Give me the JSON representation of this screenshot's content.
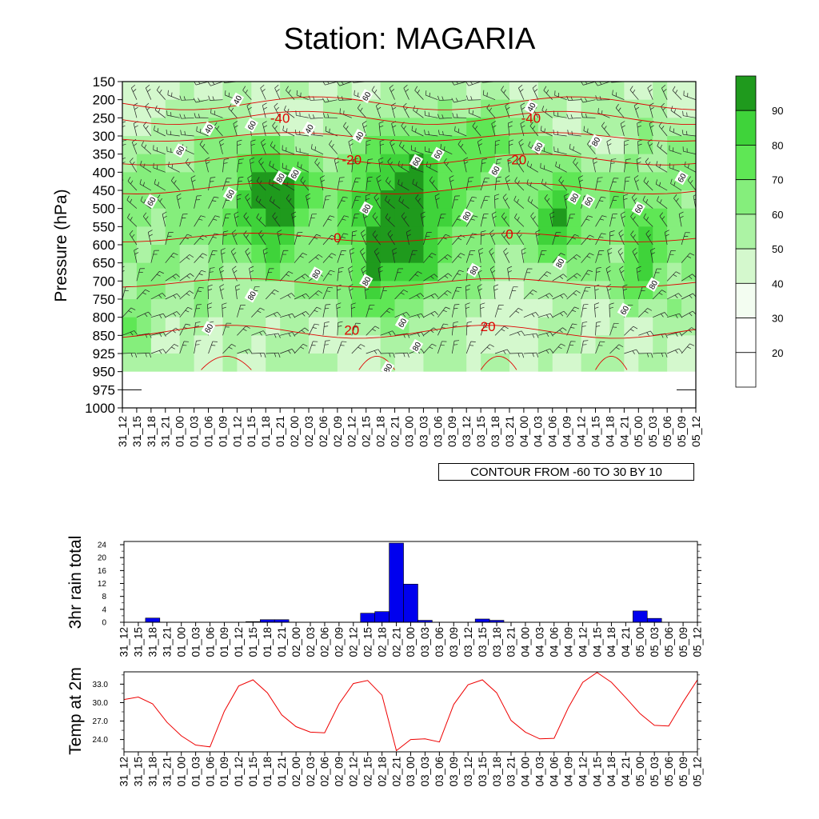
{
  "title": "Station: MAGARIA",
  "contour_note": "CONTOUR FROM -60 TO 30 BY 10",
  "colors": {
    "rh_levels": [
      "#ffffff",
      "#f3fdf1",
      "#d4f8cd",
      "#acf3a4",
      "#85ee7c",
      "#5fe755",
      "#3fd33a",
      "#1f9a1d"
    ],
    "temp_contour": "#e00000",
    "rain_bar": "#0000ee",
    "temp_line": "#ee0000"
  },
  "time_labels": [
    "31_12",
    "31_15",
    "31_18",
    "31_21",
    "01_00",
    "01_03",
    "01_06",
    "01_09",
    "01_12",
    "01_15",
    "01_18",
    "01_21",
    "02_00",
    "02_03",
    "02_06",
    "02_09",
    "02_12",
    "02_15",
    "02_18",
    "02_21",
    "03_00",
    "03_03",
    "03_06",
    "03_09",
    "03_12",
    "03_15",
    "03_18",
    "03_21",
    "04_00",
    "04_03",
    "04_06",
    "04_09",
    "04_12",
    "04_15",
    "04_18",
    "04_21",
    "05_00",
    "05_03",
    "05_06",
    "05_09",
    "05_12"
  ],
  "chart_data": [
    {
      "type": "heatmap",
      "title": "Station: MAGARIA",
      "ylabel": "Pressure (hPa)",
      "xlabel": "",
      "y_ticks": [
        "150",
        "200",
        "250",
        "300",
        "350",
        "400",
        "450",
        "500",
        "550",
        "600",
        "650",
        "700",
        "750",
        "800",
        "850",
        "925",
        "950",
        "975",
        "1000"
      ],
      "colorbar_ticks": [
        "20",
        "30",
        "40",
        "50",
        "60",
        "70",
        "80",
        "90"
      ],
      "colorbar_levels": [
        10,
        20,
        30,
        40,
        50,
        60,
        70,
        80,
        90,
        100
      ],
      "temperature_contour_labels": [
        "-40",
        "-40",
        "-20",
        "-20",
        "0",
        "0",
        "20",
        "20"
      ],
      "rh_contour_labels": [
        "40",
        "40",
        "40",
        "40",
        "40",
        "60",
        "60",
        "60",
        "60",
        "60",
        "60",
        "60",
        "60",
        "60",
        "60",
        "60",
        "60",
        "60",
        "60",
        "60",
        "60",
        "80",
        "80",
        "80",
        "80",
        "80",
        "80",
        "80",
        "80",
        "80",
        "80",
        "80",
        "80",
        "80"
      ]
    },
    {
      "type": "bar",
      "ylabel": "3hr rain total",
      "y_ticks": [
        "0",
        "4",
        "8",
        "12",
        "16",
        "20",
        "24"
      ],
      "ylim": [
        0,
        25
      ],
      "values": [
        0,
        0,
        1.3,
        0,
        0,
        0,
        0,
        0,
        0,
        0.2,
        0.8,
        0.8,
        0,
        0,
        0,
        0,
        0,
        2.8,
        3.3,
        24.5,
        11.8,
        0.6,
        0,
        0,
        0,
        1.0,
        0.6,
        0,
        0,
        0,
        0,
        0,
        0,
        0,
        0,
        0,
        3.5,
        1.2,
        0,
        0,
        0
      ]
    },
    {
      "type": "line",
      "ylabel": "Temp at 2m",
      "y_ticks": [
        "24.0",
        "27.0",
        "30.0",
        "33.0"
      ],
      "ylim": [
        22.0,
        35.0
      ],
      "values": [
        30.5,
        30.9,
        29.8,
        26.8,
        24.6,
        23.1,
        22.8,
        28.6,
        32.7,
        33.7,
        31.6,
        28.0,
        26.1,
        25.2,
        25.1,
        29.8,
        33.1,
        33.6,
        31.2,
        22.2,
        24.0,
        24.1,
        23.6,
        29.7,
        32.9,
        33.7,
        31.6,
        27.1,
        25.2,
        24.1,
        24.2,
        29.2,
        33.3,
        34.9,
        33.3,
        30.8,
        28.2,
        26.3,
        26.2,
        30.1,
        33.7
      ]
    }
  ]
}
